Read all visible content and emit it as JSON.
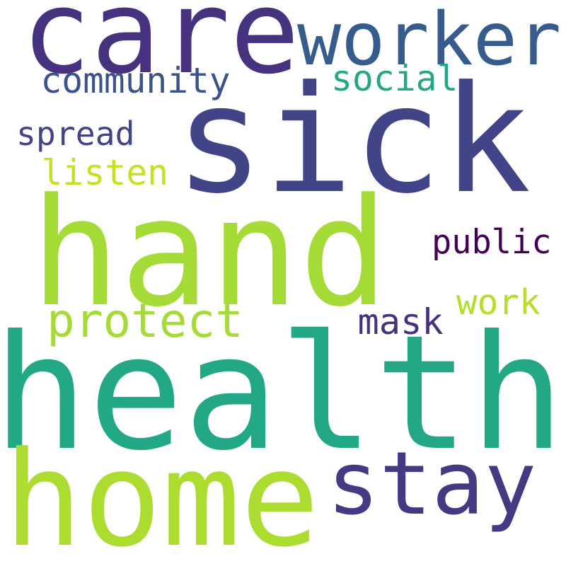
{
  "words": [
    {
      "text": "care",
      "color": "#46327e"
    },
    {
      "text": "worker",
      "color": "#365c8d"
    },
    {
      "text": "sick",
      "color": "#414487"
    },
    {
      "text": "community",
      "color": "#3b528b"
    },
    {
      "text": "social",
      "color": "#22a884"
    },
    {
      "text": "spread",
      "color": "#414487"
    },
    {
      "text": "listen",
      "color": "#c8e020"
    },
    {
      "text": "hand",
      "color": "#a5db36"
    },
    {
      "text": "public",
      "color": "#440154"
    },
    {
      "text": "protect",
      "color": "#a5db36"
    },
    {
      "text": "work",
      "color": "#b5de2b"
    },
    {
      "text": "mask",
      "color": "#46327e"
    },
    {
      "text": "health",
      "color": "#22a884"
    },
    {
      "text": "home",
      "color": "#addc30"
    },
    {
      "text": "stay",
      "color": "#443a83"
    }
  ]
}
